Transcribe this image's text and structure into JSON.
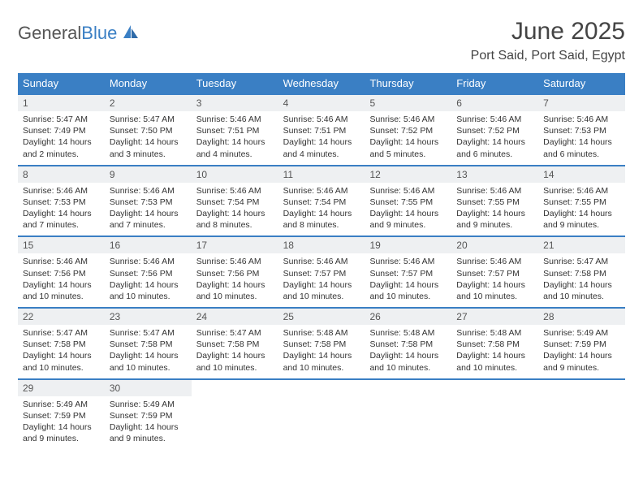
{
  "brand": {
    "part1": "General",
    "part2": "Blue"
  },
  "title": "June 2025",
  "location": "Port Said, Port Said, Egypt",
  "colors": {
    "accent": "#3a7fc4",
    "dayNumBg": "#eef0f2",
    "text": "#333333",
    "bg": "#ffffff"
  },
  "dayHeaders": [
    "Sunday",
    "Monday",
    "Tuesday",
    "Wednesday",
    "Thursday",
    "Friday",
    "Saturday"
  ],
  "weeks": [
    [
      {
        "n": "1",
        "sr": "5:47 AM",
        "ss": "7:49 PM",
        "dl": "14 hours and 2 minutes."
      },
      {
        "n": "2",
        "sr": "5:47 AM",
        "ss": "7:50 PM",
        "dl": "14 hours and 3 minutes."
      },
      {
        "n": "3",
        "sr": "5:46 AM",
        "ss": "7:51 PM",
        "dl": "14 hours and 4 minutes."
      },
      {
        "n": "4",
        "sr": "5:46 AM",
        "ss": "7:51 PM",
        "dl": "14 hours and 4 minutes."
      },
      {
        "n": "5",
        "sr": "5:46 AM",
        "ss": "7:52 PM",
        "dl": "14 hours and 5 minutes."
      },
      {
        "n": "6",
        "sr": "5:46 AM",
        "ss": "7:52 PM",
        "dl": "14 hours and 6 minutes."
      },
      {
        "n": "7",
        "sr": "5:46 AM",
        "ss": "7:53 PM",
        "dl": "14 hours and 6 minutes."
      }
    ],
    [
      {
        "n": "8",
        "sr": "5:46 AM",
        "ss": "7:53 PM",
        "dl": "14 hours and 7 minutes."
      },
      {
        "n": "9",
        "sr": "5:46 AM",
        "ss": "7:53 PM",
        "dl": "14 hours and 7 minutes."
      },
      {
        "n": "10",
        "sr": "5:46 AM",
        "ss": "7:54 PM",
        "dl": "14 hours and 8 minutes."
      },
      {
        "n": "11",
        "sr": "5:46 AM",
        "ss": "7:54 PM",
        "dl": "14 hours and 8 minutes."
      },
      {
        "n": "12",
        "sr": "5:46 AM",
        "ss": "7:55 PM",
        "dl": "14 hours and 9 minutes."
      },
      {
        "n": "13",
        "sr": "5:46 AM",
        "ss": "7:55 PM",
        "dl": "14 hours and 9 minutes."
      },
      {
        "n": "14",
        "sr": "5:46 AM",
        "ss": "7:55 PM",
        "dl": "14 hours and 9 minutes."
      }
    ],
    [
      {
        "n": "15",
        "sr": "5:46 AM",
        "ss": "7:56 PM",
        "dl": "14 hours and 10 minutes."
      },
      {
        "n": "16",
        "sr": "5:46 AM",
        "ss": "7:56 PM",
        "dl": "14 hours and 10 minutes."
      },
      {
        "n": "17",
        "sr": "5:46 AM",
        "ss": "7:56 PM",
        "dl": "14 hours and 10 minutes."
      },
      {
        "n": "18",
        "sr": "5:46 AM",
        "ss": "7:57 PM",
        "dl": "14 hours and 10 minutes."
      },
      {
        "n": "19",
        "sr": "5:46 AM",
        "ss": "7:57 PM",
        "dl": "14 hours and 10 minutes."
      },
      {
        "n": "20",
        "sr": "5:46 AM",
        "ss": "7:57 PM",
        "dl": "14 hours and 10 minutes."
      },
      {
        "n": "21",
        "sr": "5:47 AM",
        "ss": "7:58 PM",
        "dl": "14 hours and 10 minutes."
      }
    ],
    [
      {
        "n": "22",
        "sr": "5:47 AM",
        "ss": "7:58 PM",
        "dl": "14 hours and 10 minutes."
      },
      {
        "n": "23",
        "sr": "5:47 AM",
        "ss": "7:58 PM",
        "dl": "14 hours and 10 minutes."
      },
      {
        "n": "24",
        "sr": "5:47 AM",
        "ss": "7:58 PM",
        "dl": "14 hours and 10 minutes."
      },
      {
        "n": "25",
        "sr": "5:48 AM",
        "ss": "7:58 PM",
        "dl": "14 hours and 10 minutes."
      },
      {
        "n": "26",
        "sr": "5:48 AM",
        "ss": "7:58 PM",
        "dl": "14 hours and 10 minutes."
      },
      {
        "n": "27",
        "sr": "5:48 AM",
        "ss": "7:58 PM",
        "dl": "14 hours and 10 minutes."
      },
      {
        "n": "28",
        "sr": "5:49 AM",
        "ss": "7:59 PM",
        "dl": "14 hours and 9 minutes."
      }
    ],
    [
      {
        "n": "29",
        "sr": "5:49 AM",
        "ss": "7:59 PM",
        "dl": "14 hours and 9 minutes."
      },
      {
        "n": "30",
        "sr": "5:49 AM",
        "ss": "7:59 PM",
        "dl": "14 hours and 9 minutes."
      },
      null,
      null,
      null,
      null,
      null
    ]
  ],
  "labels": {
    "sunrise": "Sunrise: ",
    "sunset": "Sunset: ",
    "daylight": "Daylight: "
  }
}
